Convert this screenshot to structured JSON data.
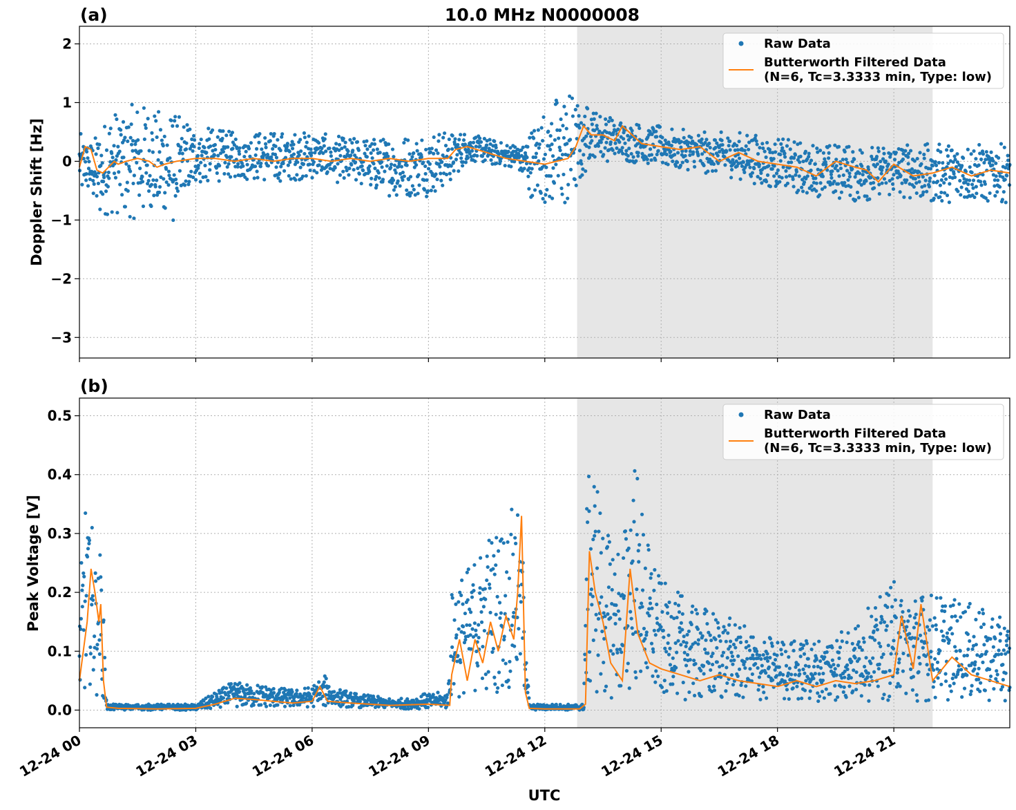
{
  "figure": {
    "title": "10.0 MHz N0000008",
    "xlabel": "UTC",
    "colors": {
      "raw": "#1f77b4",
      "filtered": "#ff7f0e",
      "shade": "#e6e6e6"
    },
    "shaded_interval": [
      "12-24 12:50",
      "12-24 22:00"
    ]
  },
  "chart_data": [
    {
      "type": "scatter",
      "panel_label": "(a)",
      "ylabel": "Doppler Shift [Hz]",
      "ylim": [
        -3.35,
        2.3
      ],
      "xlim": [
        "12-24 00:00",
        "12-24 23:59"
      ],
      "yticks": [
        2,
        1,
        0,
        -1,
        -2,
        -3
      ],
      "ytick_labels": [
        "2",
        "1",
        "0",
        "−1",
        "−2",
        "−3"
      ],
      "grid": true,
      "legend": {
        "placement": "top-right",
        "entries": [
          "Raw Data",
          "Butterworth Filtered Data",
          "(N=6, Tc=3.3333 min, Type: low)"
        ]
      },
      "series": [
        {
          "name": "Raw Data",
          "envelope_hours": [
            0,
            0.25,
            0.5,
            0.75,
            1,
            1.5,
            2,
            2.5,
            3,
            4,
            5,
            6,
            7,
            8,
            9,
            9.5,
            10,
            11,
            11.3,
            11.6,
            12,
            12.3,
            12.6,
            13,
            13.2,
            13.5,
            14,
            15,
            16,
            17,
            18,
            19,
            20,
            21,
            22,
            23,
            24
          ],
          "envelope_low": [
            -0.6,
            -0.5,
            -1.0,
            -0.9,
            -0.9,
            -1.0,
            -1.0,
            -1.1,
            -0.4,
            -0.3,
            -0.35,
            -0.3,
            -0.4,
            -0.6,
            -0.6,
            -0.4,
            0.0,
            -0.1,
            -0.1,
            -0.6,
            -0.7,
            -0.8,
            -0.8,
            -0.3,
            0.1,
            0.0,
            0.0,
            -0.1,
            -0.2,
            -0.3,
            -0.5,
            -0.6,
            -0.7,
            -0.6,
            -0.7,
            -0.7,
            -0.7
          ],
          "envelope_high": [
            0.5,
            0.3,
            0.5,
            0.8,
            0.9,
            1.0,
            0.9,
            0.8,
            0.6,
            0.5,
            0.5,
            0.5,
            0.4,
            0.4,
            0.5,
            0.5,
            0.5,
            0.3,
            0.3,
            0.5,
            0.9,
            1.1,
            1.2,
            1.0,
            0.9,
            0.8,
            0.7,
            0.6,
            0.5,
            0.5,
            0.4,
            0.3,
            0.3,
            0.3,
            0.3,
            0.3,
            0.3
          ]
        },
        {
          "name": "Butterworth Filtered Data",
          "x_hours": [
            0,
            0.15,
            0.3,
            0.45,
            0.6,
            0.75,
            0.9,
            1.0,
            1.2,
            1.5,
            1.8,
            2.0,
            2.2,
            2.5,
            3.0,
            3.5,
            4.0,
            4.5,
            5.0,
            5.5,
            6.0,
            6.5,
            7.0,
            7.5,
            8.0,
            8.5,
            9.0,
            9.5,
            9.7,
            10.0,
            10.5,
            11.0,
            11.5,
            12.0,
            12.3,
            12.6,
            12.8,
            13.0,
            13.2,
            13.5,
            13.8,
            14.0,
            14.5,
            15.0,
            15.5,
            16.0,
            16.5,
            17.0,
            17.5,
            18.0,
            18.5,
            19.0,
            19.5,
            20.0,
            20.3,
            20.6,
            21.0,
            21.5,
            22.0,
            22.5,
            23.0,
            23.5,
            23.99
          ],
          "y": [
            -0.1,
            0.25,
            0.2,
            -0.15,
            -0.2,
            -0.1,
            0.0,
            -0.05,
            0.0,
            0.05,
            0.0,
            -0.1,
            -0.05,
            0.0,
            0.05,
            0.05,
            0.0,
            0.05,
            0.0,
            0.05,
            0.05,
            0.0,
            0.05,
            0.0,
            0.05,
            0.0,
            0.05,
            0.05,
            0.2,
            0.25,
            0.15,
            0.05,
            0.0,
            -0.05,
            0.0,
            0.05,
            0.25,
            0.6,
            0.45,
            0.45,
            0.35,
            0.6,
            0.3,
            0.25,
            0.2,
            0.25,
            0.0,
            0.15,
            0.0,
            -0.05,
            -0.1,
            -0.25,
            0.0,
            -0.1,
            -0.15,
            -0.35,
            -0.05,
            -0.25,
            -0.2,
            -0.1,
            -0.25,
            -0.15,
            -0.2
          ]
        }
      ]
    },
    {
      "type": "scatter",
      "panel_label": "(b)",
      "ylabel": "Peak Voltage [V]",
      "ylim": [
        -0.03,
        0.53
      ],
      "xlim": [
        "12-24 00:00",
        "12-24 23:59"
      ],
      "yticks": [
        0.5,
        0.4,
        0.3,
        0.2,
        0.1,
        0.0
      ],
      "ytick_labels": [
        "0.5",
        "0.4",
        "0.3",
        "0.2",
        "0.1",
        "0.0"
      ],
      "xtick_hours": [
        0,
        3,
        6,
        9,
        12,
        15,
        18,
        21
      ],
      "xtick_labels": [
        "12-24 00",
        "12-24 03",
        "12-24 06",
        "12-24 09",
        "12-24 12",
        "12-24 15",
        "12-24 18",
        "12-24 21"
      ],
      "grid": true,
      "legend": {
        "placement": "top-right",
        "entries": [
          "Raw Data",
          "Butterworth Filtered Data",
          "(N=6, Tc=3.3333 min, Type: low)"
        ]
      },
      "series": [
        {
          "name": "Raw Data",
          "envelope_hours": [
            0,
            0.2,
            0.35,
            0.5,
            0.62,
            0.7,
            1.0,
            3.0,
            3.5,
            4.0,
            4.5,
            5.0,
            5.5,
            6.0,
            6.3,
            6.6,
            7.0,
            8.0,
            8.5,
            9.0,
            9.5,
            9.6,
            9.8,
            10.0,
            10.5,
            11.0,
            11.2,
            11.4,
            11.6,
            12.0,
            12.5,
            13.0,
            13.1,
            13.3,
            13.6,
            14.0,
            14.3,
            14.6,
            15.0,
            16.0,
            17.0,
            18.0,
            19.0,
            20.0,
            21.0,
            21.5,
            22.0,
            23.0,
            23.99
          ],
          "envelope_low": [
            0.02,
            0.02,
            0.03,
            0.02,
            0.01,
            0.0,
            0.0,
            0.0,
            0.002,
            0.005,
            0.005,
            0.005,
            0.005,
            0.005,
            0.005,
            0.005,
            0.005,
            0.002,
            0.002,
            0.002,
            0.002,
            0.02,
            0.02,
            0.03,
            0.03,
            0.03,
            0.04,
            0.04,
            0.0,
            0.0,
            0.0,
            0.0,
            0.02,
            0.02,
            0.02,
            0.02,
            0.02,
            0.02,
            0.02,
            0.015,
            0.015,
            0.015,
            0.015,
            0.015,
            0.015,
            0.015,
            0.015,
            0.015,
            0.015
          ],
          "envelope_high": [
            0.2,
            0.4,
            0.3,
            0.3,
            0.2,
            0.01,
            0.01,
            0.01,
            0.03,
            0.05,
            0.045,
            0.04,
            0.035,
            0.04,
            0.06,
            0.04,
            0.03,
            0.02,
            0.02,
            0.03,
            0.03,
            0.2,
            0.24,
            0.24,
            0.3,
            0.32,
            0.35,
            0.32,
            0.01,
            0.01,
            0.01,
            0.01,
            0.45,
            0.42,
            0.3,
            0.28,
            0.45,
            0.3,
            0.22,
            0.18,
            0.15,
            0.12,
            0.12,
            0.15,
            0.22,
            0.2,
            0.2,
            0.18,
            0.15
          ]
        },
        {
          "name": "Butterworth Filtered Data",
          "x_hours": [
            0,
            0.1,
            0.2,
            0.3,
            0.4,
            0.5,
            0.55,
            0.62,
            0.7,
            1.0,
            2.0,
            3.0,
            3.5,
            4.0,
            4.5,
            5.0,
            5.5,
            6.0,
            6.2,
            6.4,
            7.0,
            8.0,
            9.0,
            9.55,
            9.6,
            9.8,
            10.0,
            10.2,
            10.4,
            10.6,
            10.8,
            11.0,
            11.2,
            11.3,
            11.4,
            11.5,
            11.6,
            12.0,
            12.5,
            12.9,
            13.05,
            13.15,
            13.3,
            13.5,
            13.7,
            14.0,
            14.2,
            14.4,
            14.7,
            15.0,
            15.5,
            16.0,
            16.5,
            17.0,
            17.5,
            18.0,
            18.5,
            19.0,
            19.5,
            20.0,
            20.5,
            21.0,
            21.2,
            21.5,
            21.7,
            22.0,
            22.5,
            23.0,
            23.5,
            23.99
          ],
          "y": [
            0.05,
            0.1,
            0.15,
            0.24,
            0.2,
            0.15,
            0.18,
            0.05,
            0.005,
            0.003,
            0.002,
            0.003,
            0.01,
            0.02,
            0.018,
            0.015,
            0.012,
            0.015,
            0.04,
            0.015,
            0.012,
            0.008,
            0.01,
            0.008,
            0.06,
            0.12,
            0.05,
            0.12,
            0.08,
            0.15,
            0.1,
            0.16,
            0.12,
            0.2,
            0.33,
            0.03,
            0.003,
            0.002,
            0.002,
            0.002,
            0.01,
            0.27,
            0.2,
            0.15,
            0.08,
            0.05,
            0.24,
            0.13,
            0.08,
            0.07,
            0.06,
            0.05,
            0.06,
            0.05,
            0.045,
            0.04,
            0.05,
            0.04,
            0.05,
            0.045,
            0.05,
            0.06,
            0.16,
            0.07,
            0.18,
            0.05,
            0.09,
            0.06,
            0.05,
            0.04
          ]
        }
      ]
    }
  ]
}
